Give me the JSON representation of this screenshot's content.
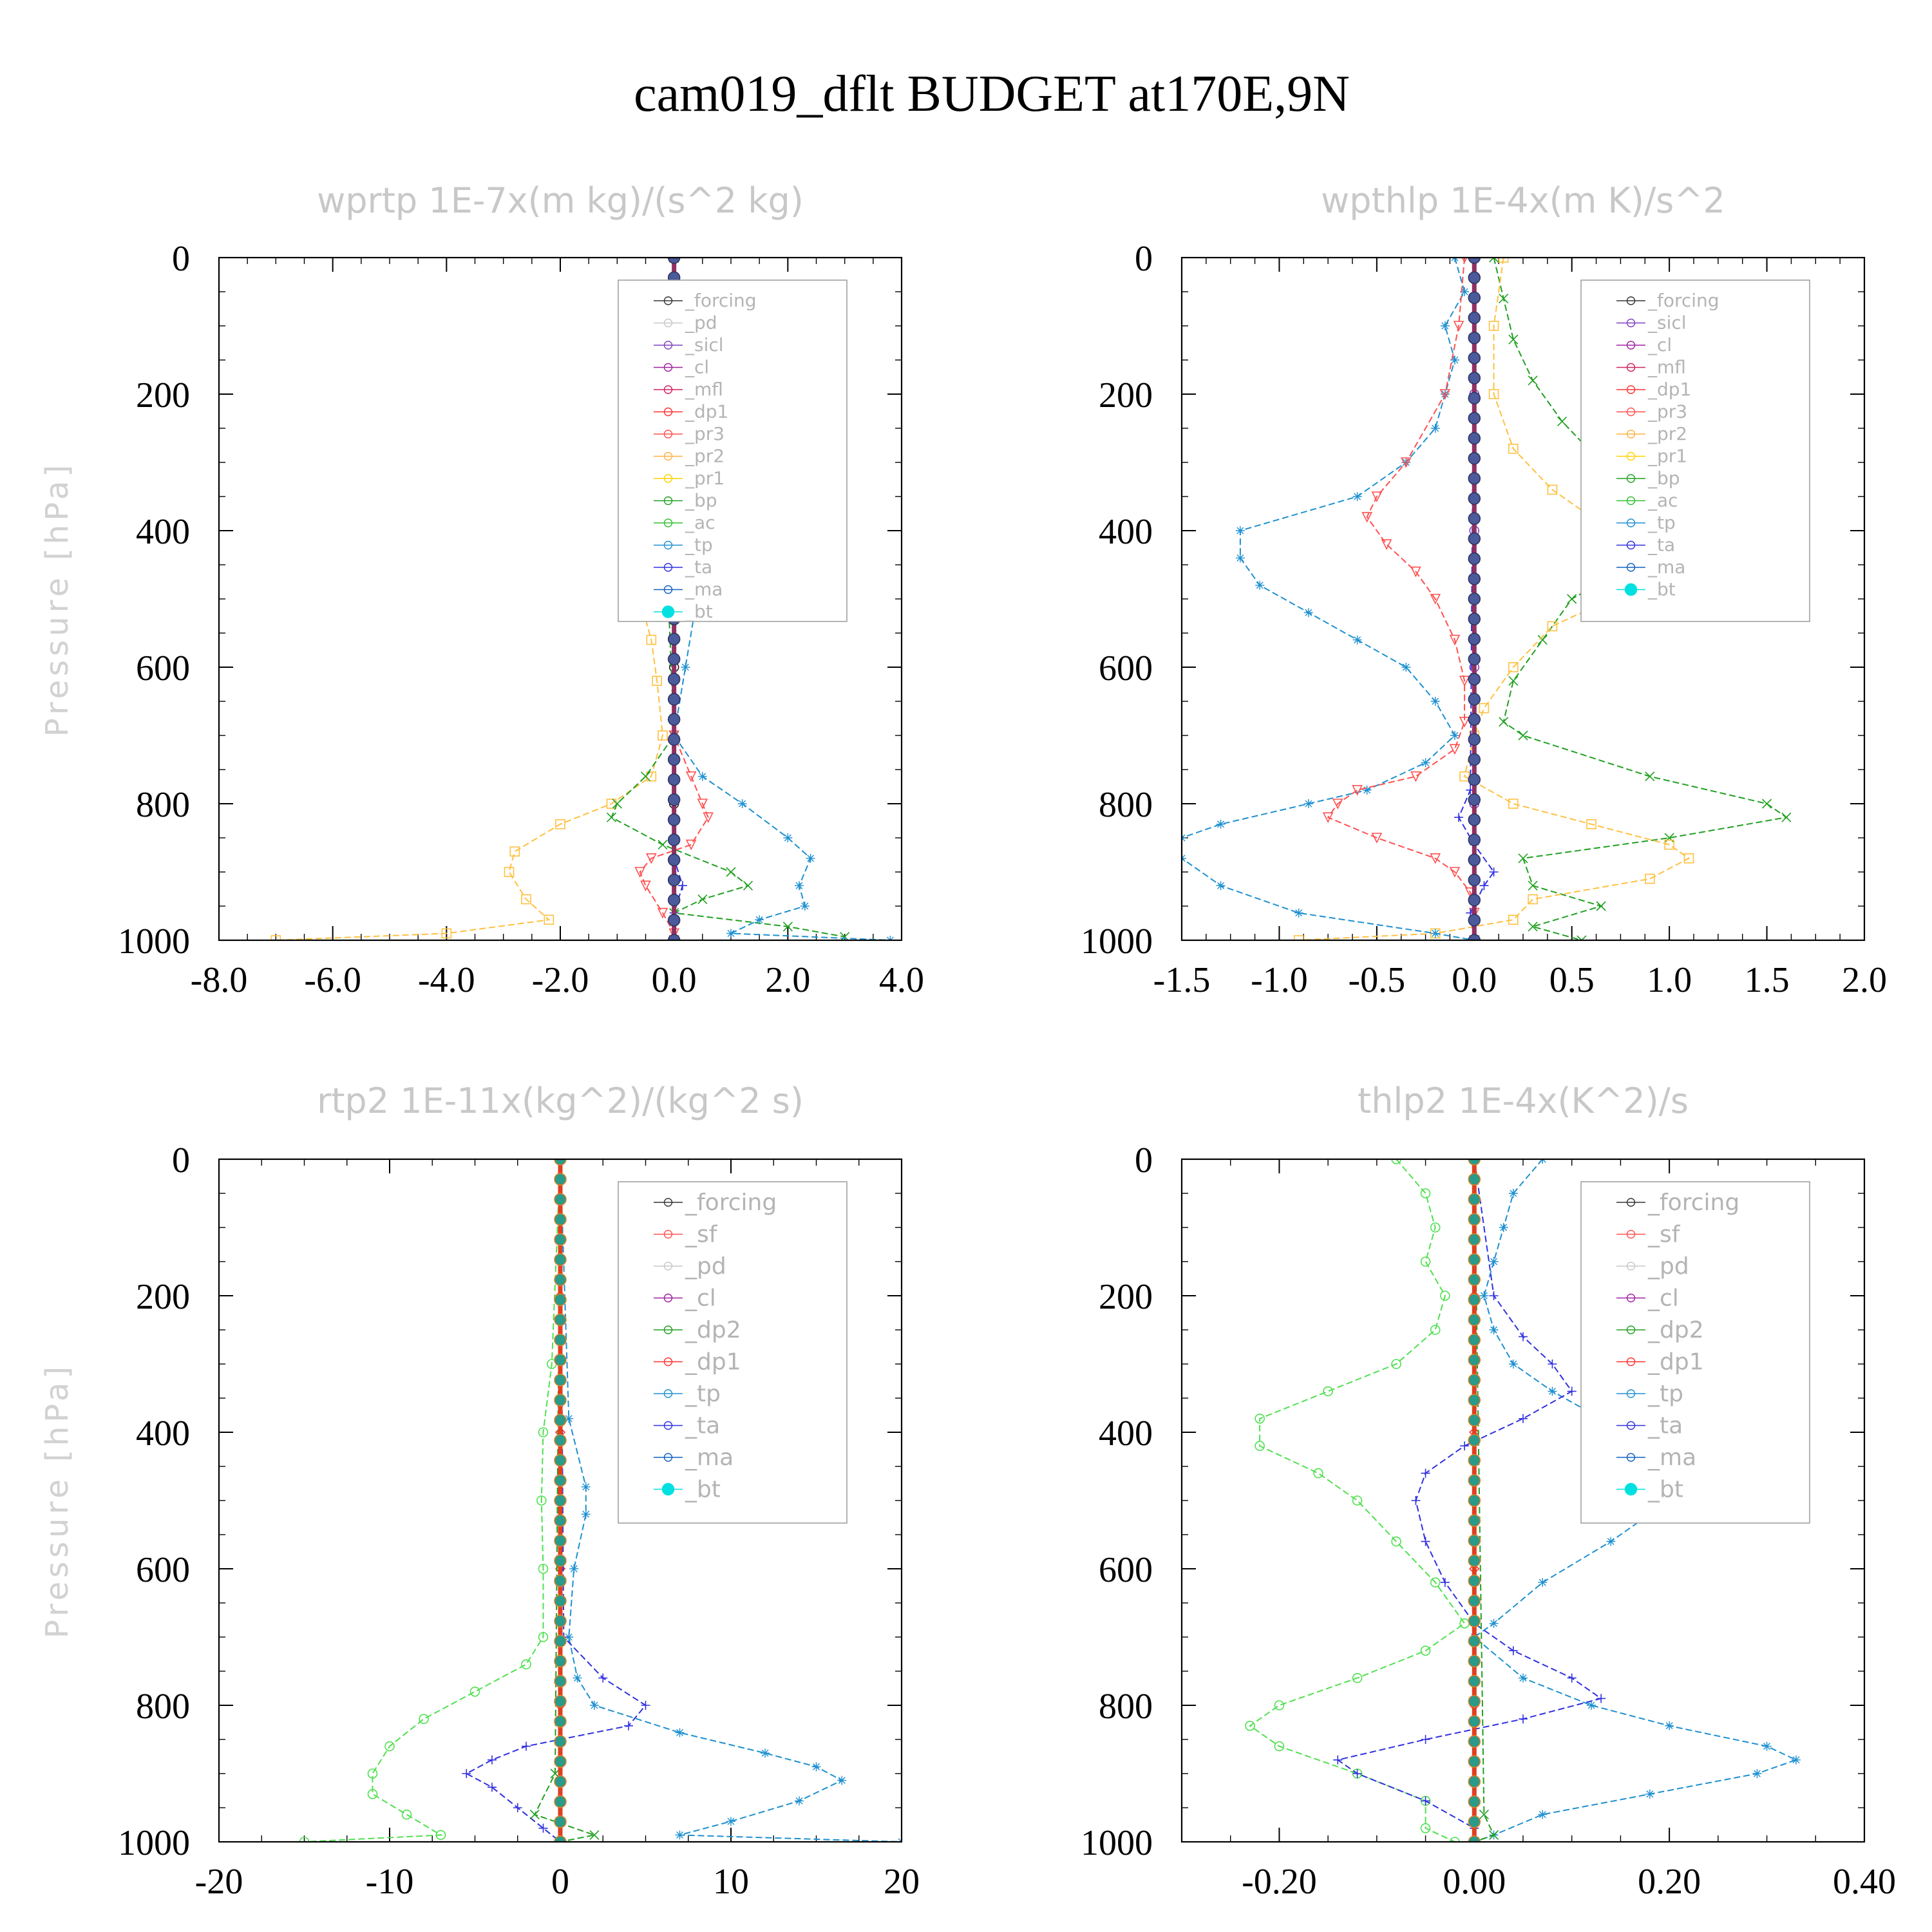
{
  "figure_title": "cam019_dflt  BUDGET at170E,9N",
  "colors": {
    "forcing": "#222222",
    "pd": "#c0c0c0",
    "sicl": "#8040c0",
    "cl": "#a020a0",
    "mfl": "#d02060",
    "dp1": "#ff3030",
    "pr3": "#ff5050",
    "pr2": "#ffb040",
    "pr1": "#ffd000",
    "bp": "#20a020",
    "ac": "#30c030",
    "tp": "#1e90d0",
    "ta": "#3030e0",
    "ma": "#1060c0",
    "bt": "#00e0e0"
  },
  "chart_data": [
    {
      "type": "line",
      "title": "wprtp   1E-7x(m kg)/(s^2 kg)",
      "ylabel": "Pressure [hPa]",
      "xlim": [
        -8,
        4
      ],
      "ylim": [
        0,
        1000
      ],
      "xticks": [
        -8,
        -6,
        -4,
        -2,
        0,
        2,
        4
      ],
      "xtick_labels": [
        "-8.0",
        "-6.0",
        "-4.0",
        "-2.0",
        "0.0",
        "2.0",
        "4.0"
      ],
      "yticks": [
        0,
        200,
        400,
        600,
        800,
        1000
      ],
      "ytick_labels": [
        "0",
        "200",
        "400",
        "600",
        "800",
        "1000"
      ],
      "legend": {
        "position": "upper-right",
        "entries": [
          "_forcing",
          "_pd",
          "_sicl",
          "_cl",
          "_mfl",
          "_dp1",
          "_pr3",
          "_pr2",
          "_pr1",
          "_bp",
          "_ac",
          "_tp",
          "_ta",
          "_ma",
          "_bt"
        ]
      },
      "series": [
        {
          "name": "_forcing",
          "color": "#222222",
          "marker": "circle",
          "pressure": [
            0,
            200,
            400,
            600,
            800,
            1000
          ],
          "values": [
            0,
            0,
            0,
            0,
            0,
            0
          ]
        },
        {
          "name": "_pr2",
          "color": "#ffc040",
          "marker": "square",
          "pressure": [
            0,
            200,
            300,
            380,
            440,
            500,
            560,
            620,
            700,
            760,
            800,
            830,
            870,
            900,
            940,
            970,
            990,
            1000
          ],
          "values": [
            0,
            0,
            -0.05,
            -0.3,
            -0.5,
            -0.6,
            -0.4,
            -0.3,
            -0.2,
            -0.4,
            -1.1,
            -2.0,
            -2.8,
            -2.9,
            -2.6,
            -2.2,
            -4.0,
            -7.0
          ]
        },
        {
          "name": "_bp",
          "color": "#20a020",
          "marker": "x",
          "pressure": [
            0,
            300,
            380,
            500,
            700,
            760,
            800,
            820,
            860,
            900,
            920,
            940,
            960,
            980,
            995
          ],
          "values": [
            0,
            -0.05,
            -0.3,
            -0.1,
            0,
            -0.5,
            -1.0,
            -1.1,
            -0.2,
            1.0,
            1.3,
            0.5,
            0.0,
            2.0,
            3.0
          ]
        },
        {
          "name": "_tp",
          "color": "#1e90d0",
          "marker": "asterisk",
          "pressure": [
            0,
            300,
            400,
            450,
            500,
            600,
            700,
            760,
            800,
            850,
            880,
            920,
            950,
            970,
            990,
            1000
          ],
          "values": [
            0,
            0.1,
            0.4,
            0.5,
            0.4,
            0.2,
            0.0,
            0.5,
            1.2,
            2.0,
            2.4,
            2.2,
            2.3,
            1.5,
            1.0,
            3.8
          ]
        },
        {
          "name": "_pr3",
          "color": "#ff5050",
          "marker": "triangle-down",
          "pressure": [
            0,
            700,
            760,
            800,
            820,
            860,
            880,
            900,
            920,
            960,
            990,
            1000
          ],
          "values": [
            0,
            0,
            0.3,
            0.5,
            0.6,
            0.3,
            -0.4,
            -0.6,
            -0.5,
            -0.2,
            0,
            0
          ]
        },
        {
          "name": "_ta",
          "color": "#3030e0",
          "marker": "plus",
          "pressure": [
            0,
            880,
            920,
            960,
            1000
          ],
          "values": [
            0,
            0,
            0.15,
            0,
            0
          ]
        },
        {
          "name": "_bt",
          "color": "#00e0e0",
          "marker": "dot",
          "pressure": [
            500
          ],
          "values": [
            0.3
          ]
        }
      ]
    },
    {
      "type": "line",
      "title": "wpthlp   1E-4x(m K)/s^2",
      "ylabel": "Pressure [hPa]",
      "xlim": [
        -1.5,
        2.0
      ],
      "ylim": [
        0,
        1000
      ],
      "xticks": [
        -1.5,
        -1.0,
        -0.5,
        0,
        0.5,
        1.0,
        1.5,
        2.0
      ],
      "xtick_labels": [
        "-1.5",
        "-1.0",
        "-0.5",
        "0.0",
        "0.5",
        "1.0",
        "1.5",
        "2.0"
      ],
      "yticks": [
        0,
        200,
        400,
        600,
        800,
        1000
      ],
      "ytick_labels": [
        "0",
        "200",
        "400",
        "600",
        "800",
        "1000"
      ],
      "legend": {
        "position": "upper-right",
        "entries": [
          "_forcing",
          "_sicl",
          "_cl",
          "_mfl",
          "_dp1",
          "_pr3",
          "_pr2",
          "_pr1",
          "_bp",
          "_ac",
          "_tp",
          "_ta",
          "_ma",
          "_bt"
        ]
      },
      "series": [
        {
          "name": "_forcing",
          "color": "#8040c0",
          "marker": "circle",
          "pressure": [
            0,
            200,
            400,
            600,
            800,
            1000
          ],
          "values": [
            0,
            0,
            0,
            0,
            0,
            0
          ]
        },
        {
          "name": "_bp",
          "color": "#20a020",
          "marker": "x",
          "pressure": [
            0,
            60,
            120,
            180,
            240,
            300,
            340,
            380,
            420,
            460,
            500,
            560,
            620,
            680,
            700,
            760,
            800,
            820,
            850,
            880,
            920,
            950,
            980,
            1000
          ],
          "values": [
            0.1,
            0.15,
            0.2,
            0.3,
            0.45,
            0.65,
            0.85,
            1.05,
            0.95,
            0.75,
            0.5,
            0.35,
            0.2,
            0.15,
            0.25,
            0.9,
            1.5,
            1.6,
            1.0,
            0.25,
            0.3,
            0.65,
            0.3,
            0.55
          ]
        },
        {
          "name": "_pr2",
          "color": "#ffc040",
          "marker": "square",
          "pressure": [
            0,
            100,
            200,
            280,
            340,
            380,
            420,
            460,
            500,
            540,
            600,
            660,
            700,
            760,
            800,
            830,
            860,
            880,
            910,
            940,
            970,
            990,
            1000
          ],
          "values": [
            0.15,
            0.1,
            0.1,
            0.2,
            0.4,
            0.6,
            0.8,
            0.85,
            0.7,
            0.4,
            0.2,
            0.05,
            0.0,
            -0.05,
            0.2,
            0.6,
            1.0,
            1.1,
            0.9,
            0.3,
            0.2,
            -0.2,
            -0.9
          ]
        },
        {
          "name": "_tp",
          "color": "#1e90d0",
          "marker": "asterisk",
          "pressure": [
            0,
            50,
            100,
            150,
            200,
            250,
            300,
            350,
            400,
            440,
            480,
            520,
            560,
            600,
            650,
            700,
            740,
            780,
            800,
            830,
            850,
            880,
            920,
            960,
            990,
            1000
          ],
          "values": [
            -0.1,
            -0.05,
            -0.15,
            -0.1,
            -0.15,
            -0.2,
            -0.35,
            -0.6,
            -1.2,
            -1.2,
            -1.1,
            -0.85,
            -0.6,
            -0.35,
            -0.2,
            -0.1,
            -0.25,
            -0.55,
            -0.85,
            -1.3,
            -1.5,
            -1.5,
            -1.3,
            -0.9,
            -0.2,
            0.0
          ]
        },
        {
          "name": "_pr3",
          "color": "#ff5050",
          "marker": "triangle-down",
          "pressure": [
            0,
            100,
            200,
            300,
            350,
            380,
            420,
            460,
            500,
            560,
            620,
            680,
            720,
            760,
            780,
            800,
            820,
            850,
            880,
            900,
            930,
            960,
            1000
          ],
          "values": [
            -0.05,
            -0.08,
            -0.15,
            -0.35,
            -0.5,
            -0.55,
            -0.45,
            -0.3,
            -0.2,
            -0.1,
            -0.05,
            -0.05,
            -0.1,
            -0.3,
            -0.6,
            -0.7,
            -0.75,
            -0.5,
            -0.2,
            -0.1,
            -0.02,
            0.0,
            0.0
          ]
        },
        {
          "name": "_ta",
          "color": "#3030e0",
          "marker": "plus",
          "pressure": [
            0,
            780,
            820,
            860,
            900,
            920,
            960,
            1000
          ],
          "values": [
            0.0,
            -0.02,
            -0.08,
            0.0,
            0.1,
            0.05,
            -0.02,
            0.0
          ]
        }
      ]
    },
    {
      "type": "line",
      "title": "rtp2   1E-11x(kg^2)/(kg^2 s)",
      "ylabel": "Pressure [hPa]",
      "xlim": [
        -20,
        20
      ],
      "ylim": [
        0,
        1000
      ],
      "xticks": [
        -20,
        -10,
        0,
        10,
        20
      ],
      "xtick_labels": [
        "-20",
        "-10",
        "0",
        "10",
        "20"
      ],
      "yticks": [
        0,
        200,
        400,
        600,
        800,
        1000
      ],
      "ytick_labels": [
        "0",
        "200",
        "400",
        "600",
        "800",
        "1000"
      ],
      "legend": {
        "position": "upper-right",
        "entries": [
          "_forcing",
          "_sf",
          "_pd",
          "_cl",
          "_dp2",
          "_dp1",
          "_tp",
          "_ta",
          "_ma",
          "_bt"
        ]
      },
      "series": [
        {
          "name": "_forcing",
          "color": "#ff3030",
          "marker": "diamond",
          "pressure": [
            0,
            200,
            400,
            600,
            800,
            1000
          ],
          "values": [
            0,
            0,
            0,
            0,
            0,
            0
          ]
        },
        {
          "name": "_dp1",
          "color": "#50e050",
          "marker": "circle",
          "pressure": [
            0,
            300,
            400,
            500,
            600,
            700,
            740,
            780,
            820,
            860,
            900,
            930,
            960,
            990,
            1000
          ],
          "values": [
            0,
            -0.5,
            -1.0,
            -1.1,
            -1.0,
            -1.0,
            -2.0,
            -5.0,
            -8.0,
            -10.0,
            -11.0,
            -11.0,
            -9.0,
            -7.0,
            -15.0
          ]
        },
        {
          "name": "_tp",
          "color": "#1e90d0",
          "marker": "asterisk",
          "pressure": [
            0,
            380,
            480,
            520,
            600,
            700,
            760,
            800,
            840,
            870,
            890,
            910,
            940,
            970,
            990,
            1000
          ],
          "values": [
            0,
            0.5,
            1.5,
            1.5,
            0.8,
            0.5,
            1.0,
            2.0,
            7.0,
            12.0,
            15.0,
            16.5,
            14.0,
            10.0,
            7.0,
            20.0
          ]
        },
        {
          "name": "_ta",
          "color": "#3030e0",
          "marker": "plus",
          "pressure": [
            0,
            700,
            760,
            800,
            830,
            860,
            880,
            900,
            920,
            950,
            980,
            1000
          ],
          "values": [
            0,
            0.2,
            2.5,
            5.0,
            4.0,
            -2.0,
            -4.0,
            -5.5,
            -4.0,
            -2.5,
            -1.0,
            0.0
          ]
        },
        {
          "name": "_dp2",
          "color": "#20a020",
          "marker": "x",
          "pressure": [
            0,
            900,
            960,
            990,
            1000
          ],
          "values": [
            0,
            -0.3,
            -1.5,
            2.0,
            0.0
          ]
        }
      ]
    },
    {
      "type": "line",
      "title": "thlp2   1E-4x(K^2)/s",
      "ylabel": "Pressure [hPa]",
      "xlim": [
        -0.3,
        0.4
      ],
      "ylim": [
        0,
        1000
      ],
      "xticks": [
        -0.2,
        0.0,
        0.2,
        0.4
      ],
      "xtick_labels": [
        "-0.20",
        "0.00",
        "0.20",
        "0.40"
      ],
      "yticks": [
        0,
        200,
        400,
        600,
        800,
        1000
      ],
      "ytick_labels": [
        "0",
        "200",
        "400",
        "600",
        "800",
        "1000"
      ],
      "legend": {
        "position": "upper-right",
        "entries": [
          "_forcing",
          "_sf",
          "_pd",
          "_cl",
          "_dp2",
          "_dp1",
          "_tp",
          "_ta",
          "_ma",
          "_bt"
        ]
      },
      "series": [
        {
          "name": "_forcing",
          "color": "#ff3030",
          "marker": "diamond",
          "pressure": [
            0,
            200,
            400,
            600,
            800,
            1000
          ],
          "values": [
            0,
            0,
            0,
            0,
            0,
            0
          ]
        },
        {
          "name": "_dp1",
          "color": "#50e050",
          "marker": "circle",
          "pressure": [
            0,
            50,
            100,
            150,
            200,
            250,
            300,
            340,
            380,
            420,
            460,
            500,
            560,
            620,
            680,
            720,
            760,
            800,
            830,
            860,
            900,
            940,
            980,
            1000
          ],
          "values": [
            -0.08,
            -0.05,
            -0.04,
            -0.05,
            -0.03,
            -0.04,
            -0.08,
            -0.15,
            -0.22,
            -0.22,
            -0.16,
            -0.12,
            -0.08,
            -0.04,
            -0.01,
            -0.05,
            -0.12,
            -0.2,
            -0.23,
            -0.2,
            -0.12,
            -0.05,
            -0.05,
            -0.02
          ]
        },
        {
          "name": "_tp",
          "color": "#1e90d0",
          "marker": "asterisk",
          "pressure": [
            0,
            50,
            100,
            150,
            200,
            250,
            300,
            340,
            380,
            420,
            460,
            500,
            560,
            620,
            680,
            700,
            760,
            800,
            830,
            860,
            880,
            900,
            930,
            960,
            990,
            1000
          ],
          "values": [
            0.07,
            0.04,
            0.03,
            0.02,
            0.01,
            0.02,
            0.04,
            0.08,
            0.13,
            0.2,
            0.23,
            0.2,
            0.14,
            0.07,
            0.02,
            0.0,
            0.05,
            0.12,
            0.2,
            0.3,
            0.33,
            0.29,
            0.18,
            0.07,
            0.02,
            0.0
          ]
        },
        {
          "name": "_ta",
          "color": "#3030e0",
          "marker": "plus",
          "pressure": [
            0,
            200,
            260,
            300,
            340,
            380,
            420,
            460,
            500,
            560,
            620,
            680,
            720,
            760,
            790,
            820,
            850,
            880,
            900,
            940,
            980,
            1000
          ],
          "values": [
            0,
            0.02,
            0.05,
            0.08,
            0.1,
            0.05,
            -0.01,
            -0.05,
            -0.06,
            -0.05,
            -0.03,
            0.0,
            0.04,
            0.1,
            0.13,
            0.05,
            -0.05,
            -0.14,
            -0.12,
            -0.05,
            0.0,
            0.0
          ]
        },
        {
          "name": "_dp2",
          "color": "#20a020",
          "marker": "x",
          "pressure": [
            0,
            960,
            990,
            1000
          ],
          "values": [
            0,
            0.01,
            0.02,
            0.0
          ]
        }
      ]
    }
  ]
}
